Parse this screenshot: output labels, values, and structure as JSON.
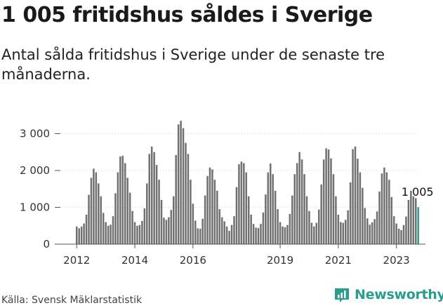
{
  "title": "1 005 fritidshus såldes i Sverige",
  "subtitle": "Antal sålda fritidshus i Sverige under de senaste tre månaderna.",
  "source": "Källa: Svensk Mäklarstatistik",
  "brand": "Newsworthy",
  "colors": {
    "bar": "#707070",
    "highlight": "#2a9d8f",
    "axis": "#555555",
    "brand": "#2a9d8f"
  },
  "chart_data": {
    "type": "bar",
    "ylim": [
      0,
      3500
    ],
    "yticks": [
      0,
      1000,
      2000,
      3000
    ],
    "ytick_labels": [
      "0",
      "1 000",
      "2 000",
      "3 000"
    ],
    "x_labels": [
      {
        "label": "2012",
        "index": 0
      },
      {
        "label": "2014",
        "index": 24
      },
      {
        "label": "2016",
        "index": 48
      },
      {
        "label": "2019",
        "index": 84
      },
      {
        "label": "2021",
        "index": 108
      },
      {
        "label": "2023",
        "index": 132
      }
    ],
    "last_label": "1 005",
    "values": [
      480,
      430,
      480,
      560,
      800,
      1340,
      1800,
      2050,
      1950,
      1650,
      1300,
      850,
      600,
      500,
      530,
      760,
      1380,
      1950,
      2380,
      2400,
      2200,
      1800,
      1400,
      900,
      600,
      500,
      520,
      630,
      970,
      1650,
      2450,
      2650,
      2500,
      2150,
      1750,
      1200,
      720,
      660,
      730,
      930,
      1300,
      2420,
      3250,
      3350,
      3150,
      2750,
      2450,
      1750,
      1100,
      640,
      430,
      420,
      690,
      1320,
      1850,
      2080,
      2030,
      1750,
      1450,
      950,
      730,
      620,
      480,
      360,
      520,
      760,
      1550,
      2170,
      2240,
      2200,
      1950,
      1300,
      800,
      550,
      450,
      440,
      550,
      860,
      1350,
      1950,
      2190,
      1900,
      1450,
      950,
      600,
      480,
      460,
      520,
      820,
      1320,
      1900,
      2200,
      2500,
      2300,
      1900,
      1300,
      900,
      580,
      480,
      580,
      940,
      1620,
      2300,
      2600,
      2570,
      2330,
      1900,
      1300,
      800,
      600,
      580,
      660,
      920,
      1680,
      2580,
      2650,
      2320,
      1950,
      1530,
      980,
      700,
      530,
      590,
      680,
      890,
      1430,
      1920,
      2080,
      1950,
      1750,
      1280,
      760,
      560,
      420,
      380,
      520,
      750,
      1200,
      1450,
      1300,
      1250,
      1005
    ]
  }
}
